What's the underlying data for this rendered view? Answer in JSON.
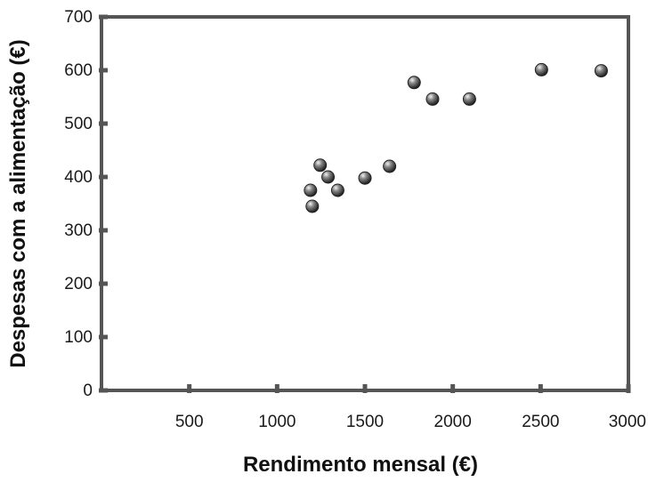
{
  "chart_data": {
    "type": "scatter",
    "title": "",
    "xlabel": "Rendimento mensal (€)",
    "ylabel": "Despesas com a alimentação (€)",
    "xlim": [
      0,
      3000
    ],
    "ylim": [
      0,
      700
    ],
    "x_ticks": [
      500,
      1000,
      1500,
      2000,
      2500,
      3000
    ],
    "y_ticks": [
      0,
      100,
      200,
      300,
      400,
      500,
      600,
      700
    ],
    "grid": false,
    "legend": "none",
    "colors": {
      "axis": "#555555",
      "marker": "#222222",
      "text": "#1a1a1a"
    },
    "points": [
      {
        "x": 1190,
        "y": 375
      },
      {
        "x": 1200,
        "y": 345
      },
      {
        "x": 1245,
        "y": 422
      },
      {
        "x": 1290,
        "y": 400
      },
      {
        "x": 1345,
        "y": 375
      },
      {
        "x": 1500,
        "y": 398
      },
      {
        "x": 1640,
        "y": 420
      },
      {
        "x": 1780,
        "y": 577
      },
      {
        "x": 1885,
        "y": 546
      },
      {
        "x": 2095,
        "y": 546
      },
      {
        "x": 2505,
        "y": 601
      },
      {
        "x": 2845,
        "y": 599
      }
    ]
  }
}
